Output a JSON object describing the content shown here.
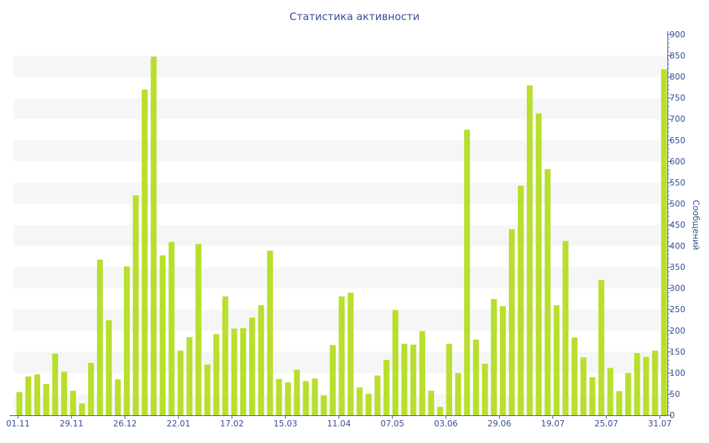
{
  "chart_data": {
    "type": "bar",
    "title": "Статистика активности",
    "ylabel": "Сообщений",
    "xlabel": "",
    "ylim": [
      0,
      900
    ],
    "y_ticks": [
      0,
      50,
      100,
      150,
      200,
      250,
      300,
      350,
      400,
      450,
      500,
      550,
      600,
      650,
      700,
      750,
      800,
      850,
      900
    ],
    "y_axis_side": "right",
    "grid": "alternating horizontal bands",
    "x_tick_labels": [
      "01.11",
      "29.11",
      "26.12",
      "22.01",
      "17.02",
      "15.03",
      "11.04",
      "07.05",
      "03.06",
      "29.06",
      "19.07",
      "25.07",
      "31.07"
    ],
    "values": [
      55,
      92,
      97,
      74,
      146,
      103,
      58,
      28,
      124,
      368,
      225,
      85,
      352,
      520,
      770,
      848,
      378,
      410,
      153,
      185,
      405,
      120,
      192,
      281,
      205,
      206,
      231,
      260,
      389,
      86,
      78,
      108,
      81,
      87,
      47,
      166,
      281,
      290,
      66,
      51,
      94,
      131,
      249,
      169,
      167,
      199,
      58,
      20,
      169,
      100,
      675,
      179,
      122,
      275,
      258,
      440,
      543,
      780,
      714,
      582,
      260,
      412,
      184,
      137,
      90,
      320,
      112,
      57,
      100,
      147,
      138,
      153,
      818
    ]
  },
  "colors": {
    "bar": "#b8df2e",
    "band": "#f6f6f6",
    "axis": "#3a4f96",
    "text": "#3a4f96"
  }
}
